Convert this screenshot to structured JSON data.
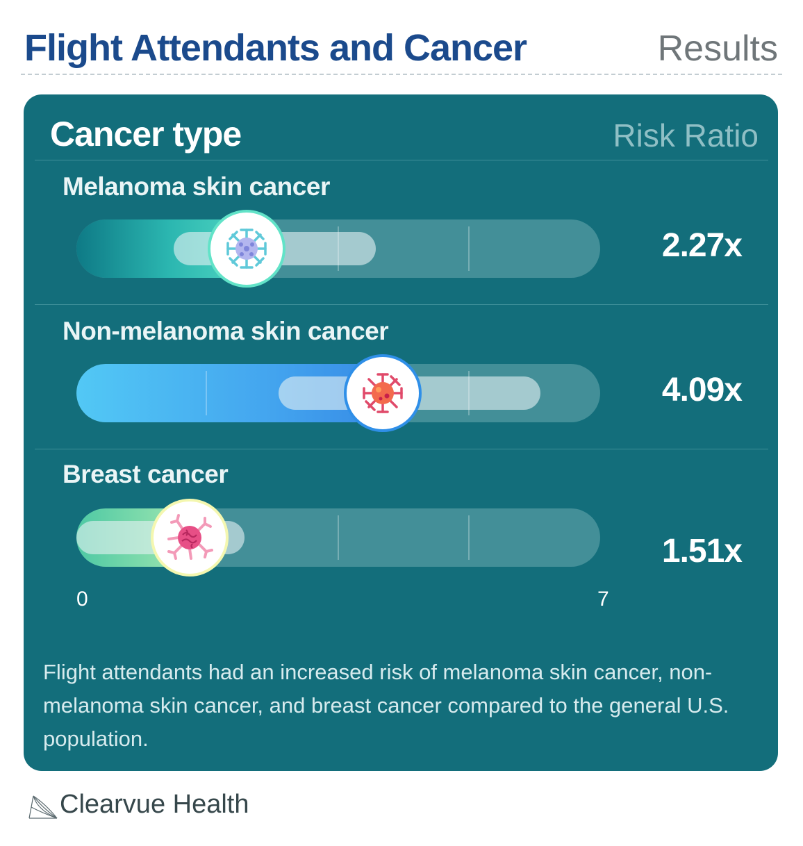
{
  "header": {
    "title": "Flight Attendants and Cancer",
    "subtitle": "Results"
  },
  "card": {
    "heading": "Cancer type",
    "column_label": "Risk Ratio",
    "footnote": "Flight attendants had an increased risk of melanoma skin cancer, non-melanoma skin cancer, and breast cancer compared to the general U.S. population."
  },
  "brand": {
    "name": "Clearvue Health",
    "icon": "clearvue-logo-icon"
  },
  "colors": {
    "title": "#1b4a8c",
    "card_bg": "#136e7b",
    "melanoma_fill": "#3dd2bf",
    "non_melanoma_fill": "#4aa3f0",
    "breast_fill": "#8de0b0",
    "melanoma_ring": "#62e3c8",
    "non_melanoma_ring": "#2f8fe8",
    "breast_ring": "#f4f7b0"
  },
  "chart_data": {
    "type": "bar",
    "orientation": "horizontal",
    "categories": [
      "Melanoma skin cancer",
      "Non-melanoma skin cancer",
      "Breast cancer"
    ],
    "values": [
      2.27,
      4.09,
      1.51
    ],
    "value_labels": [
      "2.27x",
      "4.09x",
      "1.51x"
    ],
    "confidence_interval": [
      [
        1.3,
        4.0
      ],
      [
        2.7,
        6.2
      ],
      [
        0.0,
        2.25
      ]
    ],
    "ylabel": "Risk Ratio",
    "xlim": [
      0,
      7
    ],
    "tick_labels": [
      "0",
      "7"
    ],
    "icons": [
      "melanoma-virus-icon",
      "non-melanoma-virus-icon",
      "breast-cancer-cell-icon"
    ]
  }
}
